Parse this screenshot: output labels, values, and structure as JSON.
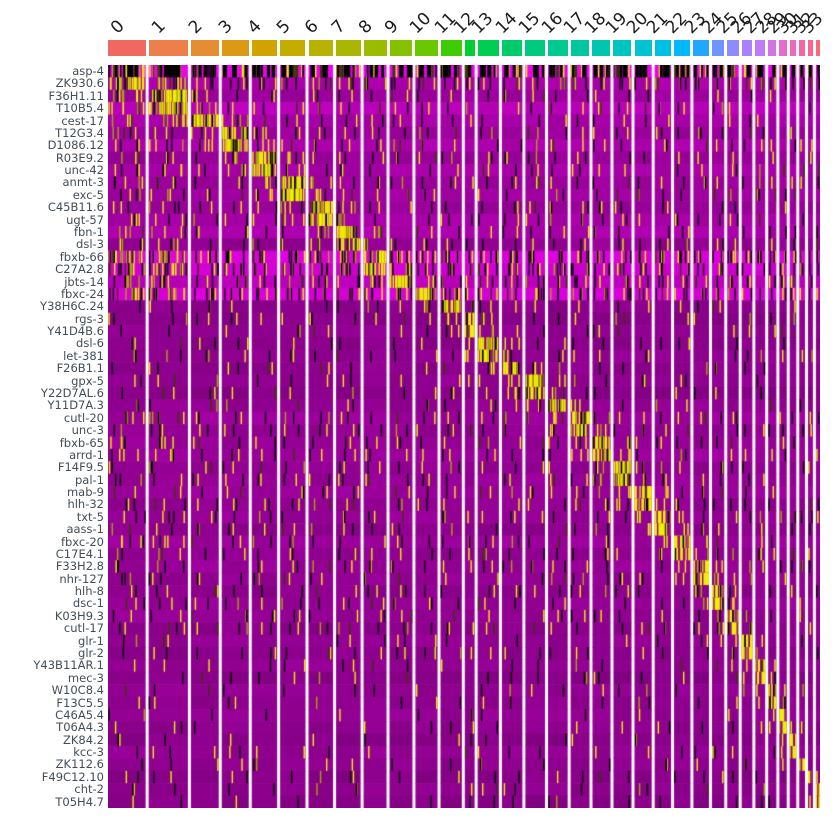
{
  "chart_data": {
    "type": "heatmap",
    "title": "",
    "x_axis": {
      "label": "",
      "tick_labels": [
        "0",
        "1",
        "2",
        "3",
        "4",
        "5",
        "6",
        "7",
        "8",
        "9",
        "10",
        "11",
        "12",
        "13",
        "14",
        "15",
        "16",
        "17",
        "18",
        "19",
        "20",
        "21",
        "22",
        "23",
        "24",
        "25",
        "26",
        "27",
        "28",
        "29",
        "30",
        "31",
        "32",
        "33"
      ]
    },
    "y_axis": {
      "label": "",
      "tick_labels": [
        "asp-4",
        "ZK930.6",
        "F36H1.11",
        "T10B5.4",
        "cest-17",
        "T12G3.4",
        "D1086.12",
        "R03E9.2",
        "unc-42",
        "anmt-3",
        "exc-5",
        "C45B11.6",
        "ugt-57",
        "fbn-1",
        "dsl-3",
        "fbxb-66",
        "C27A2.8",
        "jbts-14",
        "fbxc-24",
        "Y38H6C.24",
        "rgs-3",
        "Y41D4B.6",
        "dsl-6",
        "let-381",
        "F26B1.1",
        "gpx-5",
        "Y22D7AL.6",
        "Y11D7A.3",
        "cutl-20",
        "unc-3",
        "fbxb-65",
        "arrd-1",
        "F14F9.5",
        "pal-1",
        "mab-9",
        "hlh-32",
        "txt-5",
        "aass-1",
        "fbxc-20",
        "C17E4.1",
        "F33H2.8",
        "nhr-127",
        "hlh-8",
        "dsc-1",
        "K03H9.3",
        "cutl-17",
        "glr-1",
        "glr-2",
        "Y43B11AR.1",
        "mec-3",
        "W10C8.4",
        "F13C5.5",
        "C46A5.4",
        "T06A4.3",
        "ZK84.2",
        "kcc-3",
        "ZK112.6",
        "F49C12.10",
        "cht-2",
        "T05H4.7"
      ]
    },
    "clusters": {
      "labels": [
        "0",
        "1",
        "2",
        "3",
        "4",
        "5",
        "6",
        "7",
        "8",
        "9",
        "10",
        "11",
        "12",
        "13",
        "14",
        "15",
        "16",
        "17",
        "18",
        "19",
        "20",
        "21",
        "22",
        "23",
        "24",
        "25",
        "26",
        "27",
        "28",
        "29",
        "30",
        "31",
        "32",
        "33"
      ],
      "colors": [
        "#F0685F",
        "#EC7F4B",
        "#E58D33",
        "#DC9A14",
        "#D2A300",
        "#C6AB00",
        "#B9B100",
        "#ABB600",
        "#9ABB00",
        "#86C100",
        "#6BC700",
        "#3ECC00",
        "#00CF30",
        "#00CD52",
        "#00CB6B",
        "#00CA80",
        "#00C891",
        "#00C7A0",
        "#00C6AF",
        "#00C4BF",
        "#00C2D1",
        "#00BFE6",
        "#00B9FB",
        "#22A7FF",
        "#6E95FF",
        "#8F8AFF",
        "#A981FF",
        "#C07AF5",
        "#D373E3",
        "#E36CCE",
        "#EF67B9",
        "#F764A4",
        "#FB648F",
        "#FD687B"
      ],
      "sizes": [
        46,
        48,
        34,
        33,
        31,
        31,
        30,
        30,
        28,
        28,
        27,
        26,
        12,
        26,
        25,
        24,
        24,
        23,
        22,
        22,
        21,
        20,
        20,
        19,
        15,
        14,
        13,
        12,
        10,
        9,
        8,
        7,
        6,
        5
      ]
    },
    "cell_colormap": {
      "low": "#FF00FF",
      "mid": "#000000",
      "high": "#FFFF00"
    },
    "genes": [
      {
        "name": "asp-4",
        "marker": -1,
        "bg": 0.94,
        "yd": 0.2,
        "bd": 0.38
      },
      {
        "name": "ZK930.6",
        "marker": 0,
        "bg": 0.68,
        "yd": 0.06,
        "bd": 0.09,
        "lb": 0.1
      },
      {
        "name": "F36H1.11",
        "marker": 1,
        "bg": 0.62,
        "lb": 0.05
      },
      {
        "name": "T10B5.4",
        "marker": 1,
        "bg": 0.74,
        "lb": 0.05
      },
      {
        "name": "cest-17",
        "marker": 2,
        "bg": 0.66,
        "lb": 0.05
      },
      {
        "name": "T12G3.4",
        "marker": 3,
        "bg": 0.62,
        "lb": 0.04
      },
      {
        "name": "D1086.12",
        "marker": 3,
        "bg": 0.68,
        "lb": 0.04
      },
      {
        "name": "R03E9.2",
        "marker": 4,
        "bg": 0.6,
        "lb": 0.04
      },
      {
        "name": "unc-42",
        "marker": 4,
        "bg": 0.66,
        "lb": 0.04
      },
      {
        "name": "anmt-3",
        "marker": 5,
        "bg": 0.62,
        "lb": 0.04
      },
      {
        "name": "exc-5",
        "marker": 5,
        "bg": 0.64,
        "lb": 0.04
      },
      {
        "name": "C45B11.6",
        "marker": 6,
        "bg": 0.6,
        "lb": 0.04
      },
      {
        "name": "ugt-57",
        "marker": 6,
        "bg": 0.66,
        "lb": 0.04
      },
      {
        "name": "fbn-1",
        "marker": 7,
        "bg": 0.68,
        "lb": 0.04
      },
      {
        "name": "dsl-3",
        "marker": 7,
        "bg": 0.58,
        "lb": 0.04
      },
      {
        "name": "fbxb-66",
        "marker": 8,
        "bg": 0.88,
        "yd": 0.1,
        "bd": 0.16,
        "lb": 0.18
      },
      {
        "name": "C27A2.8",
        "marker": 8,
        "bg": 0.82,
        "yd": 0.06,
        "bd": 0.14,
        "lb": 0.14
      },
      {
        "name": "jbts-14",
        "marker": 9,
        "bg": 0.74,
        "yd": 0.05,
        "bd": 0.08,
        "lb": 0.06
      },
      {
        "name": "fbxc-24",
        "marker": 10,
        "bg": 0.86,
        "yd": 0.08,
        "bd": 0.12,
        "lb": 0.12
      },
      {
        "name": "Y38H6C.24",
        "marker": 11,
        "bg": 0.56,
        "yd": 0.018,
        "bd": 0.02
      },
      {
        "name": "rgs-3",
        "marker": 12,
        "bg": 0.54,
        "yd": 0.018,
        "bd": 0.02
      },
      {
        "name": "Y41D4B.6",
        "marker": 12,
        "bg": 0.57,
        "yd": 0.018,
        "bd": 0.02
      },
      {
        "name": "dsl-6",
        "marker": 13,
        "bg": 0.55,
        "yd": 0.018,
        "bd": 0.02
      },
      {
        "name": "let-381",
        "marker": 13,
        "bg": 0.58,
        "yd": 0.018,
        "bd": 0.02
      },
      {
        "name": "F26B1.1",
        "marker": 14,
        "bg": 0.56,
        "yd": 0.018,
        "bd": 0.02
      },
      {
        "name": "gpx-5",
        "marker": 15,
        "bg": 0.58,
        "yd": 0.02,
        "bd": 0.02
      },
      {
        "name": "Y22D7AL.6",
        "marker": 15,
        "bg": 0.54,
        "yd": 0.018,
        "bd": 0.02
      },
      {
        "name": "Y11D7A.3",
        "marker": 16,
        "bg": 0.58,
        "yd": 0.02,
        "bd": 0.02
      },
      {
        "name": "cutl-20",
        "marker": 17,
        "bg": 0.62,
        "yd": 0.03,
        "bd": 0.04,
        "lb": 0.06
      },
      {
        "name": "unc-3",
        "marker": 17,
        "bg": 0.58
      },
      {
        "name": "fbxb-65",
        "marker": 18,
        "bg": 0.6,
        "lb": 0.05
      },
      {
        "name": "arrd-1",
        "marker": 18,
        "bg": 0.62,
        "lb": 0.05
      },
      {
        "name": "F14F9.5",
        "marker": 19,
        "bg": 0.58
      },
      {
        "name": "pal-1",
        "marker": 19,
        "bg": 0.6
      },
      {
        "name": "mab-9",
        "marker": 20,
        "bg": 0.62
      },
      {
        "name": "hlh-32",
        "marker": 20,
        "bg": 0.58
      },
      {
        "name": "txt-5",
        "marker": 21,
        "bg": 0.6
      },
      {
        "name": "aass-1",
        "marker": 21,
        "bg": 0.56
      },
      {
        "name": "fbxc-20",
        "marker": 22,
        "bg": 0.62,
        "lb": 0.06
      },
      {
        "name": "C17E4.1",
        "marker": 22,
        "bg": 0.58
      },
      {
        "name": "F33H2.8",
        "marker": 23,
        "bg": 0.6
      },
      {
        "name": "nhr-127",
        "marker": 23,
        "bg": 0.58
      },
      {
        "name": "hlh-8",
        "marker": 24,
        "bg": 0.56
      },
      {
        "name": "dsc-1",
        "marker": 24,
        "bg": 0.6
      },
      {
        "name": "K03H9.3",
        "marker": 25,
        "bg": 0.58
      },
      {
        "name": "cutl-17",
        "marker": 25,
        "bg": 0.56
      },
      {
        "name": "glr-1",
        "marker": 26,
        "bg": 0.58,
        "yd": 0.014,
        "bd": 0.018
      },
      {
        "name": "glr-2",
        "marker": 26,
        "bg": 0.56,
        "yd": 0.014,
        "bd": 0.018
      },
      {
        "name": "Y43B11AR.1",
        "marker": 27,
        "bg": 0.58,
        "yd": 0.014,
        "bd": 0.018
      },
      {
        "name": "mec-3",
        "marker": 27,
        "bg": 0.54,
        "yd": 0.014,
        "bd": 0.018
      },
      {
        "name": "W10C8.4",
        "marker": 28,
        "bg": 0.58,
        "yd": 0.014,
        "bd": 0.018
      },
      {
        "name": "F13C5.5",
        "marker": 28,
        "bg": 0.56,
        "yd": 0.014,
        "bd": 0.018
      },
      {
        "name": "C46A5.4",
        "marker": 29,
        "bg": 0.58,
        "yd": 0.014,
        "bd": 0.018
      },
      {
        "name": "T06A4.3",
        "marker": 29,
        "bg": 0.56,
        "yd": 0.014,
        "bd": 0.018
      },
      {
        "name": "ZK84.2",
        "marker": 30,
        "bg": 0.54,
        "yd": 0.014,
        "bd": 0.018
      },
      {
        "name": "kcc-3",
        "marker": 30,
        "bg": 0.58,
        "yd": 0.014,
        "bd": 0.018
      },
      {
        "name": "ZK112.6",
        "marker": 31,
        "bg": 0.56,
        "yd": 0.014,
        "bd": 0.018
      },
      {
        "name": "F49C12.10",
        "marker": 32,
        "bg": 0.54,
        "yd": 0.014,
        "bd": 0.018
      },
      {
        "name": "cht-2",
        "marker": 33,
        "bg": 0.56,
        "yd": 0.014,
        "bd": 0.018
      },
      {
        "name": "T05H4.7",
        "marker": 33,
        "bg": 0.54,
        "yd": 0.014,
        "bd": 0.018
      }
    ]
  }
}
